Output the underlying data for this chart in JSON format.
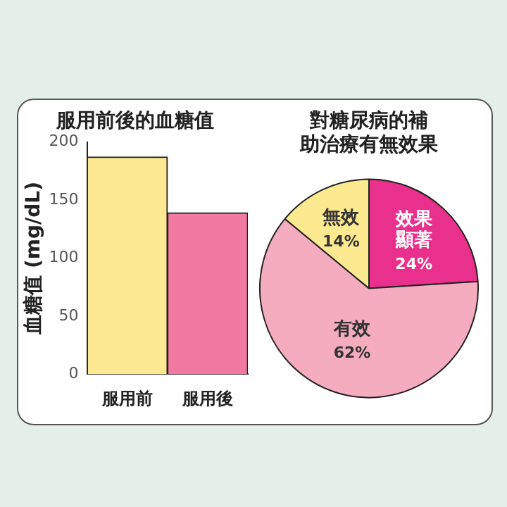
{
  "chart_data": [
    {
      "type": "bar",
      "title": "服用前後的血糖值",
      "ylabel": "血糖值 (mg/dL)",
      "categories": [
        "服用前",
        "服用後"
      ],
      "values": [
        187,
        139
      ],
      "colors": [
        "#fde992",
        "#f178a0"
      ],
      "ylim": [
        0,
        200
      ],
      "yticks": [
        0,
        50,
        100,
        150,
        200
      ],
      "grid": false,
      "legend": false
    },
    {
      "type": "pie",
      "title": "對糖尿病的補助治療有無效果",
      "categories": [
        "效果顯著",
        "有效",
        "無效"
      ],
      "values": [
        24,
        62,
        14
      ],
      "colors": [
        "#e8308c",
        "#f6acbf",
        "#fde98f"
      ],
      "value_labels": [
        "24%",
        "62%",
        "14%"
      ],
      "legend": false
    }
  ]
}
